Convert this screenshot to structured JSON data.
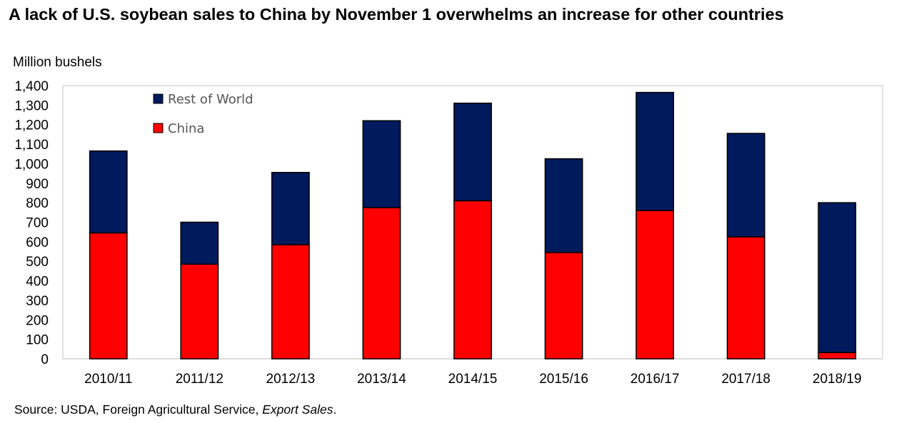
{
  "chart_data": {
    "type": "bar",
    "stacked": true,
    "title": "A lack of U.S. soybean sales to China by November 1 overwhelms an increase for other countries",
    "ylabel": "Million bushels",
    "xlabel": "",
    "categories": [
      "2010/11",
      "2011/12",
      "2012/13",
      "2013/14",
      "2014/15",
      "2015/16",
      "2016/17",
      "2017/18",
      "2018/19"
    ],
    "series": [
      {
        "name": "China",
        "color": "#ff0000",
        "values": [
          645,
          485,
          585,
          775,
          810,
          545,
          760,
          625,
          32
        ]
      },
      {
        "name": "Rest of World",
        "color": "#001a5e",
        "values": [
          420,
          215,
          370,
          445,
          500,
          480,
          605,
          530,
          768
        ]
      }
    ],
    "ylim": [
      0,
      1400
    ],
    "yticks": [
      "0",
      "100",
      "200",
      "300",
      "400",
      "500",
      "600",
      "700",
      "800",
      "900",
      "1,000",
      "1,100",
      "1,200",
      "1,300",
      "1,400"
    ],
    "ytick_values": [
      0,
      100,
      200,
      300,
      400,
      500,
      600,
      700,
      800,
      900,
      1000,
      1100,
      1200,
      1300,
      1400
    ],
    "legend": {
      "placement": "top-left inside plot",
      "order": [
        "Rest of World",
        "China"
      ]
    },
    "grid": false,
    "source": {
      "prefix": "Source: USDA, Foreign Agricultural Service, ",
      "italic": "Export Sales",
      "suffix": "."
    }
  },
  "colors": {
    "plot_border": "#d9d9d9",
    "bar_outline": "#000000"
  }
}
